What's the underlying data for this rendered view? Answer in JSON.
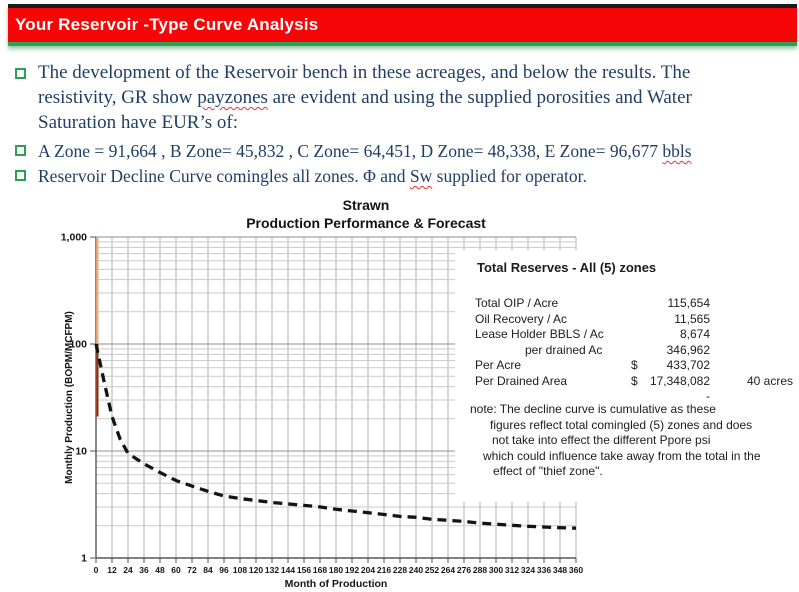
{
  "banner": {
    "title": "Your Reservoir -Type Curve Analysis"
  },
  "bullets": [
    {
      "segments": [
        {
          "t": "The development of the Reservoir bench in these acreages, and below the results. The\nresistivity, GR show ",
          "sq": false
        },
        {
          "t": "payzones",
          "sq": true
        },
        {
          "t": " are evident and using the supplied porosities and Water\nSaturation have EUR’s of:",
          "sq": false
        }
      ]
    },
    {
      "segments": [
        {
          "t": "A Zone = 91,664 , B Zone= 45,832 , C Zone= 64,451, D Zone= 48,338, E Zone= 96,677 ",
          "sq": false
        },
        {
          "t": "bbls",
          "sq": true
        }
      ]
    },
    {
      "segments": [
        {
          "t": "Reservoir Decline Curve comingles all zones. Φ and ",
          "sq": false
        },
        {
          "t": "Sw",
          "sq": true
        },
        {
          "t": " supplied for operator.",
          "sq": false
        }
      ]
    }
  ],
  "chart_data": {
    "type": "line",
    "title": "Strawn",
    "subtitle": "Production Performance & Forecast",
    "xlabel": "Month of Production",
    "ylabel": "Monthly Production (BOPM/MCFPM)",
    "yscale": "log",
    "ylim": [
      1,
      1000
    ],
    "xlim": [
      0,
      360
    ],
    "grid": true,
    "y_ticks": [
      {
        "v": 1000,
        "label": "1,000"
      },
      {
        "v": 100,
        "label": "100"
      },
      {
        "v": 10,
        "label": "10"
      },
      {
        "v": 1,
        "label": "1"
      }
    ],
    "x_ticks": [
      0,
      12,
      24,
      36,
      48,
      60,
      72,
      84,
      96,
      108,
      120,
      132,
      144,
      156,
      168,
      180,
      192,
      204,
      216,
      228,
      240,
      252,
      264,
      276,
      288,
      300,
      312,
      324,
      336,
      348,
      360
    ],
    "series": [
      {
        "name": "gas-history-vline",
        "style": "vline",
        "x": 1,
        "y_from": 1000,
        "y_to": 21,
        "color": "#EDAF7E",
        "width": 2.4
      },
      {
        "name": "oil-history-vline",
        "style": "vline",
        "x": 1,
        "y_from": 100,
        "y_to": 21,
        "color": "#8A3519",
        "width": 2.4
      },
      {
        "name": "decline-forecast",
        "style": "dashed",
        "color": "#141414",
        "width": 3.3,
        "dash": "9 6",
        "x": [
          0,
          6,
          12,
          18,
          24,
          36,
          48,
          60,
          72,
          84,
          96,
          108,
          120,
          132,
          144,
          156,
          168,
          180,
          192,
          204,
          216,
          228,
          240,
          252,
          264,
          276,
          288,
          300,
          312,
          324,
          336,
          348,
          360
        ],
        "y": [
          100,
          45,
          21,
          13,
          9.5,
          7.6,
          6.3,
          5.3,
          4.7,
          4.2,
          3.8,
          3.6,
          3.45,
          3.3,
          3.2,
          3.1,
          3.0,
          2.85,
          2.75,
          2.65,
          2.55,
          2.45,
          2.4,
          2.3,
          2.25,
          2.2,
          2.12,
          2.07,
          2.02,
          1.98,
          1.95,
          1.92,
          1.9
        ]
      }
    ]
  },
  "reserves": {
    "title": "Total Reserves - All (5) zones",
    "rows": [
      {
        "label": "Total OIP / Acre",
        "indent": false,
        "cur": "",
        "value": "115,654",
        "suffix": ""
      },
      {
        "label": "Oil Recovery / Ac",
        "indent": false,
        "cur": "",
        "value": "11,565",
        "suffix": ""
      },
      {
        "label": "Lease Holder BBLS / Ac",
        "indent": false,
        "cur": "",
        "value": "8,674",
        "suffix": ""
      },
      {
        "label": "per drained Ac",
        "indent": true,
        "cur": "",
        "value": "346,962",
        "suffix": ""
      },
      {
        "label": "Per Acre",
        "indent": false,
        "cur": "$",
        "value": "433,702",
        "suffix": ""
      },
      {
        "label": "Per Drained Area",
        "indent": false,
        "cur": "$",
        "value": "17,348,082",
        "suffix": "40  acres"
      }
    ],
    "dash": "-",
    "note_lines": [
      "note:  The decline curve is cumulative as these",
      "figures reflect total comingled (5) zones and does",
      "not take into effect the different Ppore psi",
      "which could influence take away from the total in the",
      "effect of \"thief zone\"."
    ]
  },
  "colors": {
    "banner_red": "#f60606",
    "banner_green": "#2fa055",
    "banner_black": "#1b1b1b",
    "bullet_text": "#1f3e66",
    "bullet_square": "#2e9e50",
    "squiggle": "#e0342b",
    "grid_minor": "#c6c6c6",
    "grid_major": "#8f8f8f",
    "axis": "#595959",
    "curve": "#141414",
    "gas_line": "#EDAF7E",
    "oil_line": "#8A3519"
  }
}
